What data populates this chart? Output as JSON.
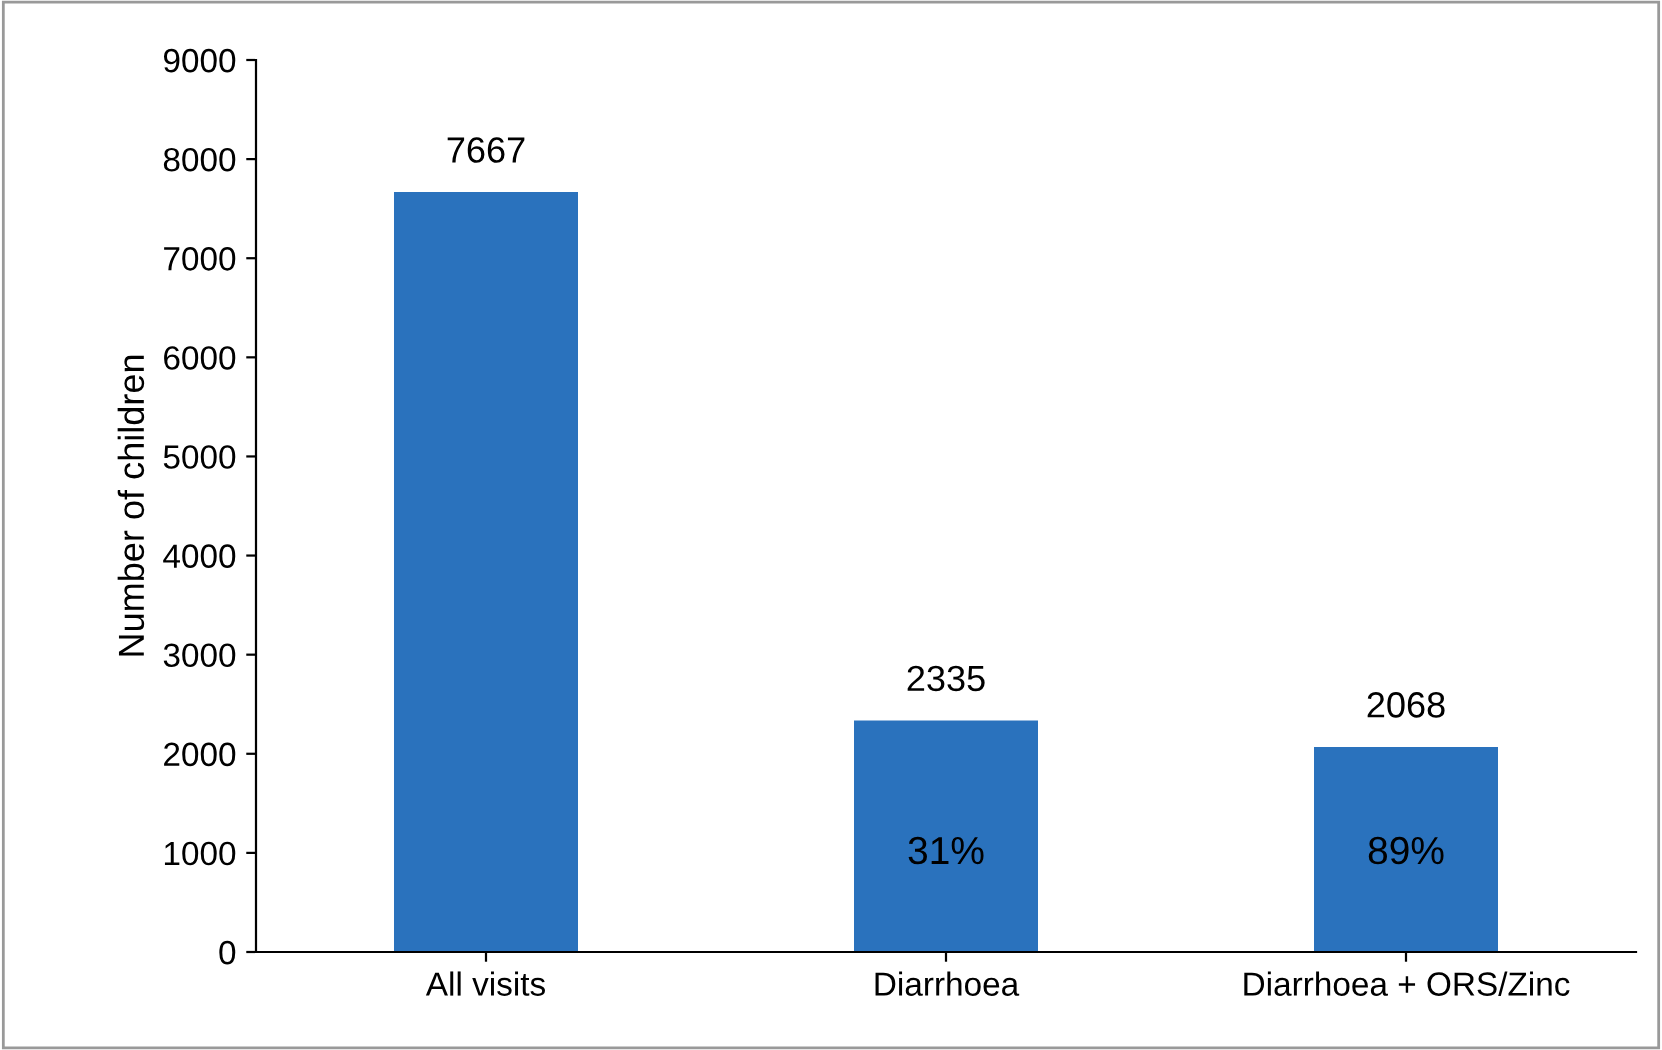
{
  "chart_data": {
    "type": "bar",
    "ylabel": "Number of children",
    "categories": [
      "All visits",
      "Diarrhoea",
      "Diarrhoea + ORS/Zinc"
    ],
    "values": [
      7667,
      2335,
      2068
    ],
    "color": "#2a72bd",
    "ylim": [
      0,
      9000
    ],
    "yticks": [
      0,
      1000,
      2000,
      3000,
      4000,
      5000,
      6000,
      7000,
      8000,
      9000
    ],
    "data_labels": true,
    "grid": false,
    "annotations": [
      "31%",
      "89%"
    ]
  }
}
